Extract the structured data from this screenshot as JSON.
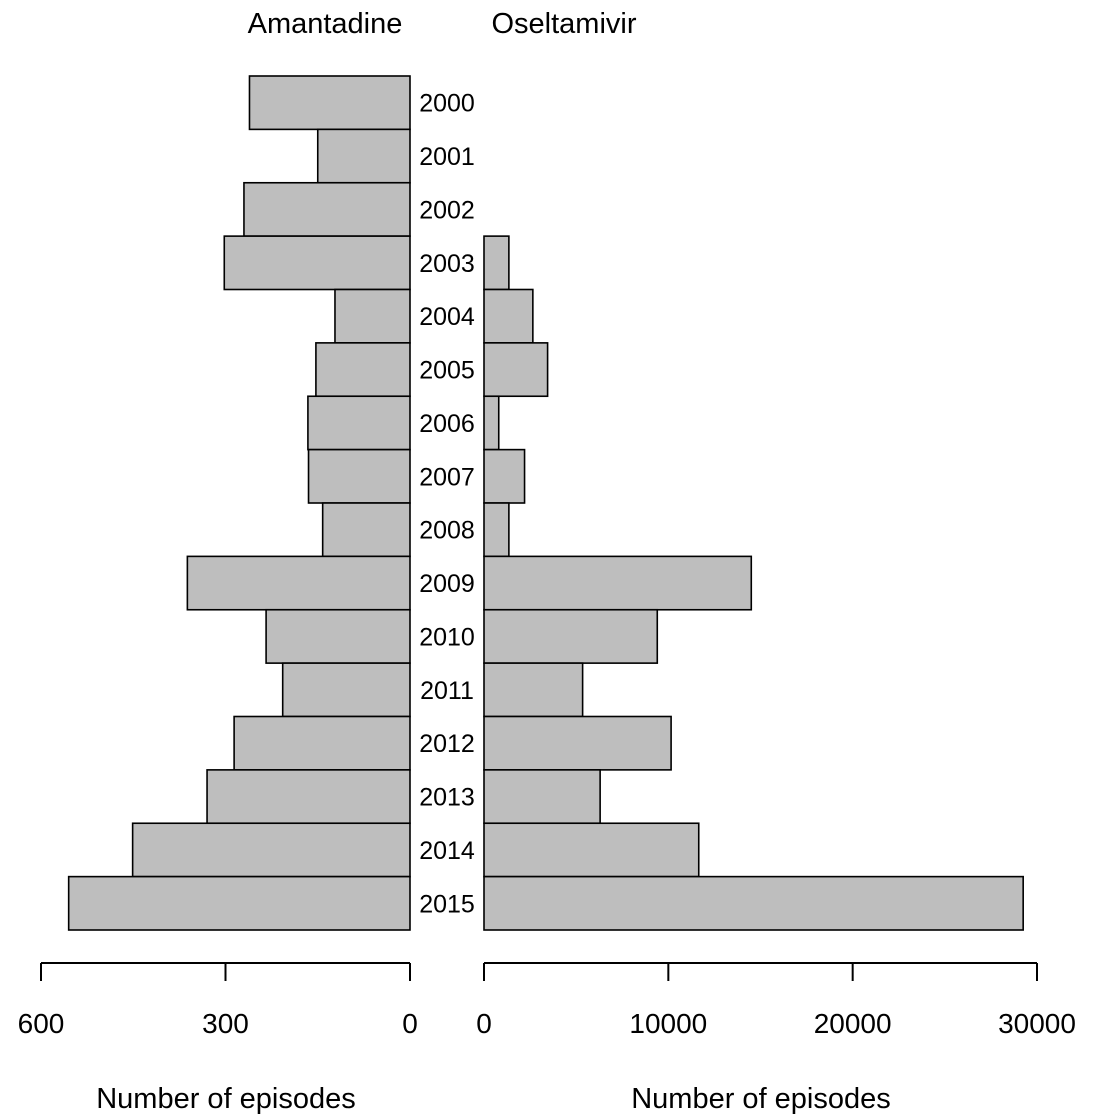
{
  "chart_data": {
    "type": "bar",
    "orientation": "horizontal",
    "layout": "back-to-back",
    "categories": [
      "2000",
      "2001",
      "2002",
      "2003",
      "2004",
      "2005",
      "2006",
      "2007",
      "2008",
      "2009",
      "2010",
      "2011",
      "2012",
      "2013",
      "2014",
      "2015"
    ],
    "panels": [
      {
        "title": "Amantadine",
        "xlabel": "Number of episodes",
        "xlim": [
          0,
          600
        ],
        "ticks": [
          600,
          300,
          0
        ],
        "tick_labels": [
          "600",
          "300",
          "0"
        ],
        "direction": "right-to-left",
        "values": [
          261,
          150,
          270,
          302,
          122,
          153,
          166,
          165,
          142,
          362,
          234,
          207,
          286,
          330,
          451,
          555
        ]
      },
      {
        "title": "Oseltamivir",
        "xlabel": "Number of episodes",
        "xlim": [
          0,
          30000
        ],
        "ticks": [
          0,
          10000,
          20000,
          30000
        ],
        "tick_labels": [
          "0",
          "10000",
          "20000",
          "30000"
        ],
        "direction": "left-to-right",
        "values": [
          null,
          null,
          null,
          1350,
          2650,
          3450,
          800,
          2200,
          1350,
          14500,
          9400,
          5350,
          10150,
          6300,
          11650,
          29250
        ]
      }
    ],
    "grid": false,
    "legend": "none"
  }
}
